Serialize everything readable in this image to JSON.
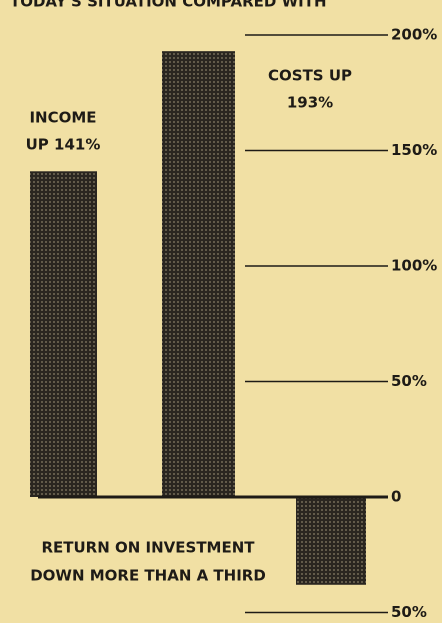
{
  "chart_data": {
    "type": "bar",
    "title": "TODAY'S SITUATION COMPARED WITH",
    "categories": [
      null,
      null,
      null
    ],
    "values": [
      141,
      193,
      -38
    ],
    "color": "#2a2620",
    "annotations": [
      [
        "INCOME",
        "UP 141%"
      ],
      [
        "COSTS UP",
        "193%"
      ],
      [
        "RETURN ON INVESTMENT",
        "DOWN MORE THAN A THIRD"
      ]
    ],
    "ylim": [
      -50,
      200
    ],
    "yticks": [
      {
        "value": -50,
        "label": "50%"
      },
      {
        "value": 0,
        "label": "0"
      },
      {
        "value": 50,
        "label": "50%"
      },
      {
        "value": 100,
        "label": "100%"
      },
      {
        "value": 150,
        "label": "150%"
      },
      {
        "value": 200,
        "label": "200%"
      }
    ],
    "grid": false
  }
}
